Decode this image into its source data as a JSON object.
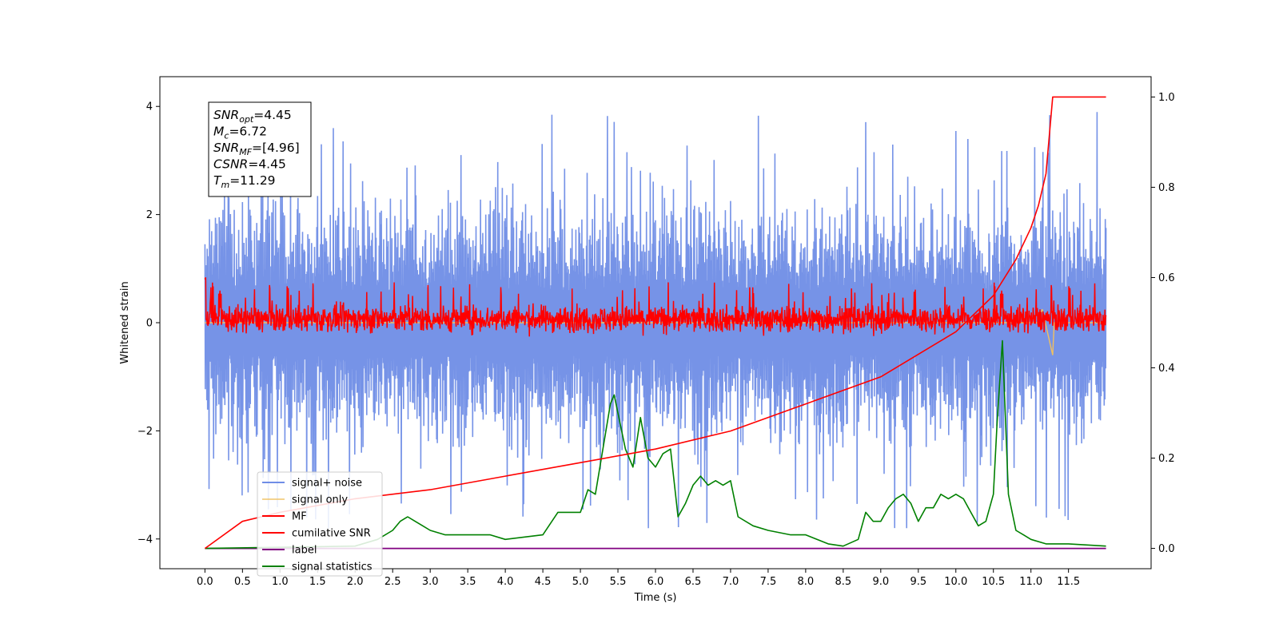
{
  "chart_data": {
    "type": "line",
    "xlabel": "Time (s)",
    "ylabel": "Whitened strain",
    "xlim": [
      -0.6,
      12.6
    ],
    "ylim": [
      -4.55,
      4.55
    ],
    "y2lim": [
      -0.045,
      1.045
    ],
    "x_ticks": [
      "0.0",
      "0.5",
      "1.0",
      "1.5",
      "2.0",
      "2.5",
      "3.0",
      "3.5",
      "4.0",
      "4.5",
      "5.0",
      "5.5",
      "6.0",
      "6.5",
      "7.0",
      "7.5",
      "8.0",
      "8.5",
      "9.0",
      "9.5",
      "10.0",
      "10.5",
      "11.0",
      "11.5"
    ],
    "y_ticks": [
      "4",
      "2",
      "0",
      "−2",
      "−4"
    ],
    "y2_ticks": [
      "1.0",
      "0.8",
      "0.6",
      "0.4",
      "0.2",
      "0.0"
    ],
    "legend_position": "lower-left",
    "series": [
      {
        "name": "signal+ noise",
        "color": "#6f8de6",
        "axis": "left",
        "x_range": [
          0,
          12.0
        ],
        "approx_center": 0.0,
        "approx_band": [
          -2.6,
          3.0
        ],
        "approx_peaks": [
          -3.8,
          4.1
        ]
      },
      {
        "name": "signal only",
        "color": "#f0c060",
        "axis": "left",
        "x_range": [
          0,
          12.0
        ],
        "approx_values_near_end": [
          [
            11.15,
            0.25
          ],
          [
            11.29,
            -0.6
          ]
        ]
      },
      {
        "name": "MF",
        "color": "#ff0000",
        "axis": "left",
        "x_range": [
          0,
          12.0
        ],
        "approx_band": [
          -0.3,
          0.45
        ],
        "approx_peaks": [
          -0.3,
          0.75
        ]
      },
      {
        "name": "cumilative SNR",
        "color": "#ff0000",
        "axis": "right",
        "x": [
          0,
          0.5,
          1,
          2,
          3,
          4,
          5,
          6,
          7,
          8,
          9,
          9.5,
          10,
          10.5,
          10.8,
          11.0,
          11.1,
          11.2,
          11.29,
          12.0
        ],
        "y": [
          0.0,
          0.06,
          0.08,
          0.11,
          0.13,
          0.16,
          0.19,
          0.22,
          0.26,
          0.32,
          0.38,
          0.43,
          0.48,
          0.56,
          0.64,
          0.71,
          0.76,
          0.83,
          1.0,
          1.0
        ]
      },
      {
        "name": "label",
        "color": "#800080",
        "axis": "right",
        "x": [
          0,
          12.0
        ],
        "y": [
          0.0,
          0.0
        ]
      },
      {
        "name": "signal statistics",
        "color": "#008000",
        "axis": "right",
        "x": [
          0,
          2.0,
          2.3,
          2.5,
          2.6,
          2.7,
          2.8,
          2.9,
          3.0,
          3.2,
          3.5,
          3.8,
          4.0,
          4.5,
          4.7,
          5.0,
          5.1,
          5.2,
          5.3,
          5.4,
          5.45,
          5.5,
          5.6,
          5.7,
          5.8,
          5.9,
          6.0,
          6.1,
          6.2,
          6.3,
          6.4,
          6.5,
          6.6,
          6.7,
          6.8,
          6.9,
          7.0,
          7.1,
          7.3,
          7.5,
          7.8,
          8.0,
          8.3,
          8.5,
          8.7,
          8.8,
          8.9,
          9.0,
          9.1,
          9.2,
          9.3,
          9.4,
          9.5,
          9.6,
          9.7,
          9.8,
          9.9,
          10.0,
          10.1,
          10.2,
          10.3,
          10.4,
          10.5,
          10.55,
          10.62,
          10.7,
          10.8,
          10.9,
          11.0,
          11.2,
          11.5,
          12.0
        ],
        "y": [
          0.0,
          0.005,
          0.02,
          0.04,
          0.06,
          0.07,
          0.06,
          0.05,
          0.04,
          0.03,
          0.03,
          0.03,
          0.02,
          0.03,
          0.08,
          0.08,
          0.13,
          0.12,
          0.22,
          0.32,
          0.34,
          0.3,
          0.22,
          0.18,
          0.29,
          0.2,
          0.18,
          0.21,
          0.22,
          0.07,
          0.1,
          0.14,
          0.16,
          0.14,
          0.15,
          0.14,
          0.15,
          0.07,
          0.05,
          0.04,
          0.03,
          0.03,
          0.01,
          0.005,
          0.02,
          0.08,
          0.06,
          0.06,
          0.09,
          0.11,
          0.12,
          0.1,
          0.06,
          0.09,
          0.09,
          0.12,
          0.11,
          0.12,
          0.11,
          0.08,
          0.05,
          0.06,
          0.12,
          0.28,
          0.46,
          0.12,
          0.04,
          0.03,
          0.02,
          0.01,
          0.01,
          0.005
        ]
      }
    ],
    "annotation": [
      {
        "base": "SNR",
        "sub": "opt",
        "rest": "=4.45"
      },
      {
        "base": "M",
        "sub": "c",
        "rest": "=6.72"
      },
      {
        "base": "SNR",
        "sub": "MF",
        "rest": "=[4.96]"
      },
      {
        "base": "CSNR",
        "sub": "",
        "rest": "=4.45"
      },
      {
        "base": "T",
        "sub": "m",
        "rest": "=11.29"
      }
    ]
  }
}
